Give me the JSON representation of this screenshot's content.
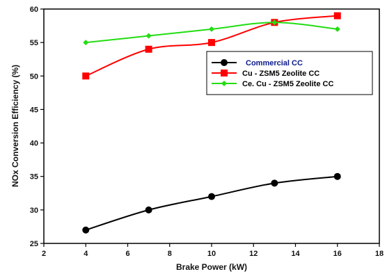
{
  "chart_data": {
    "type": "line",
    "title": "",
    "xlabel": "Brake Power (kW)",
    "ylabel": "NOx Conversion Efficiency  (%)",
    "xlim": [
      2,
      18
    ],
    "ylim": [
      25,
      60
    ],
    "xticks": [
      2,
      4,
      6,
      8,
      10,
      12,
      14,
      16,
      18
    ],
    "yticks": [
      25,
      30,
      35,
      40,
      45,
      50,
      55,
      60
    ],
    "grid": false,
    "legend_position": "upper-right",
    "series": [
      {
        "name": "Commercial CC",
        "color": "#000000",
        "marker": "circle",
        "x": [
          4,
          7,
          10,
          13,
          16
        ],
        "y": [
          27,
          30,
          32,
          34,
          35
        ]
      },
      {
        "name": "Cu - ZSM5 Zeolite CC",
        "color": "#ff0000",
        "marker": "square",
        "x": [
          4,
          7,
          10,
          13,
          16
        ],
        "y": [
          50,
          54,
          55,
          58,
          59
        ]
      },
      {
        "name": "Ce. Cu - ZSM5 Zeolite CC",
        "color": "#22dd11",
        "marker": "diamond",
        "x": [
          4,
          7,
          10,
          13,
          16
        ],
        "y": [
          55,
          56,
          57,
          58,
          57
        ]
      }
    ]
  }
}
